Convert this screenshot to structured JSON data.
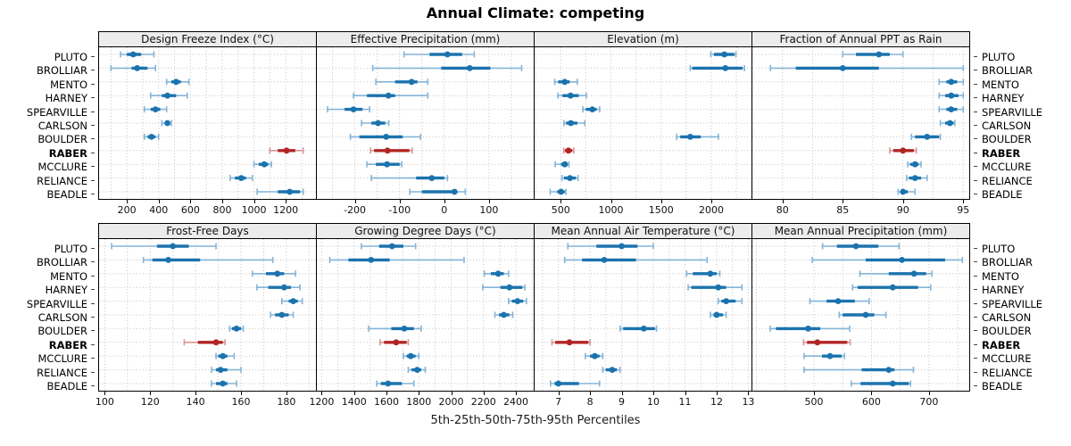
{
  "title": "Annual Climate: competing",
  "caption": "5th-25th-50th-75th-95th Percentiles",
  "colors": {
    "series": "#1b73ae",
    "series_light": "#85b4d7",
    "highlight": "#b22424",
    "highlight_light": "#d79494",
    "grid": "#c3c3c3",
    "strip_bg": "#ececec",
    "panel_border": "#000000"
  },
  "chart_data": {
    "type": "dotplot-percentiles",
    "layout": {
      "rows": 2,
      "cols": 4
    },
    "percentile_labels": [
      "5th",
      "25th",
      "50th",
      "75th",
      "95th"
    ],
    "sites": [
      "PLUTO",
      "BROLLIAR",
      "MENTO",
      "HARNEY",
      "SPEARVILLE",
      "CARLSON",
      "BOULDER",
      "RABER",
      "MCCLURE",
      "RELIANCE",
      "BEADLE"
    ],
    "highlight_site": "RABER",
    "panels": [
      {
        "title": "Design Freeze Index (°C)",
        "domain": [
          25,
          1390
        ],
        "ticks": [
          200,
          400,
          600,
          800,
          1000,
          1200
        ],
        "grid_step": 100,
        "values": {
          "PLUTO": [
            160,
            200,
            240,
            290,
            370
          ],
          "BROLLIAR": [
            100,
            230,
            265,
            330,
            380
          ],
          "MENTO": [
            450,
            480,
            510,
            540,
            590
          ],
          "HARNEY": [
            350,
            420,
            455,
            510,
            580
          ],
          "SPEARVILLE": [
            310,
            350,
            380,
            410,
            450
          ],
          "CARLSON": [
            420,
            445,
            455,
            470,
            480
          ],
          "BOULDER": [
            310,
            330,
            355,
            380,
            400
          ],
          "RABER": [
            1100,
            1150,
            1205,
            1260,
            1310
          ],
          "MCCLURE": [
            1000,
            1030,
            1065,
            1090,
            1110
          ],
          "RELIANCE": [
            850,
            880,
            920,
            950,
            990
          ],
          "BEADLE": [
            1020,
            1150,
            1225,
            1290,
            1310
          ]
        }
      },
      {
        "title": "Effective Precipitation (mm)",
        "domain": [
          -285,
          200
        ],
        "ticks": [
          -200,
          -100,
          0,
          100
        ],
        "grid_step": 50,
        "values": {
          "PLUTO": [
            -90,
            -33,
            7,
            40,
            67
          ],
          "BROLLIAR": [
            -160,
            -7,
            57,
            103,
            173
          ],
          "MENTO": [
            -153,
            -110,
            -73,
            -60,
            -37
          ],
          "HARNEY": [
            -203,
            -173,
            -125,
            -110,
            -37
          ],
          "SPEARVILLE": [
            -261,
            -223,
            -203,
            -183,
            -167
          ],
          "CARLSON": [
            -185,
            -163,
            -148,
            -132,
            -124
          ],
          "BOULDER": [
            -210,
            -190,
            -130,
            -93,
            -53
          ],
          "RABER": [
            -165,
            -157,
            -127,
            -78,
            -72
          ],
          "MCCLURE": [
            -173,
            -153,
            -128,
            -100,
            -95
          ],
          "RELIANCE": [
            -163,
            -63,
            -28,
            0,
            7
          ],
          "BEADLE": [
            -77,
            -50,
            23,
            27,
            47
          ]
        }
      },
      {
        "title": "Elevation (m)",
        "domain": [
          240,
          2400
        ],
        "ticks": [
          500,
          1000,
          1500,
          2000
        ],
        "grid_step": 250,
        "values": {
          "PLUTO": [
            1995,
            2025,
            2130,
            2230,
            2245
          ],
          "BROLLIAR": [
            1790,
            1810,
            2140,
            2310,
            2330
          ],
          "MENTO": [
            440,
            475,
            540,
            590,
            665
          ],
          "HARNEY": [
            473,
            518,
            598,
            680,
            755
          ],
          "SPEARVILLE": [
            720,
            750,
            815,
            858,
            888
          ],
          "CARLSON": [
            533,
            553,
            601,
            666,
            740
          ],
          "BOULDER": [
            1655,
            1690,
            1790,
            1895,
            2070
          ],
          "RABER": [
            530,
            542,
            577,
            615,
            630
          ],
          "MCCLURE": [
            445,
            503,
            541,
            571,
            583
          ],
          "RELIANCE": [
            512,
            533,
            592,
            651,
            672
          ],
          "BEADLE": [
            395,
            465,
            503,
            541,
            553
          ]
        }
      },
      {
        "title": "Fraction of Annual PPT as Rain",
        "domain": [
          77.5,
          95.5
        ],
        "ticks": [
          80,
          85,
          90,
          95
        ],
        "grid_step": 2.5,
        "values": {
          "PLUTO": [
            85,
            86.1,
            88,
            88.9,
            90
          ],
          "BROLLIAR": [
            79,
            81.1,
            85,
            88,
            95
          ],
          "MENTO": [
            93,
            93.6,
            94,
            94.5,
            95
          ],
          "HARNEY": [
            93,
            93.5,
            94,
            94.6,
            95
          ],
          "SPEARVILLE": [
            93,
            93.6,
            94,
            94.5,
            95
          ],
          "CARLSON": [
            93.1,
            93.5,
            93.9,
            94.2,
            94.3
          ],
          "BOULDER": [
            90.7,
            91,
            92,
            93,
            93.1
          ],
          "RABER": [
            88.9,
            89.2,
            90,
            90.9,
            91.1
          ],
          "MCCLURE": [
            90.4,
            90.6,
            91,
            91.3,
            91.5
          ],
          "RELIANCE": [
            90.3,
            90.5,
            91,
            91.5,
            92
          ],
          "BEADLE": [
            89.6,
            89.8,
            90,
            90.4,
            91
          ]
        }
      },
      {
        "title": "Frost-Free Days",
        "domain": [
          97.5,
          193
        ],
        "ticks": [
          100,
          120,
          140,
          160,
          180
        ],
        "grid_step": 10,
        "values": {
          "PLUTO": [
            103,
            123,
            130,
            137,
            149
          ],
          "BROLLIAR": [
            117,
            121,
            128,
            142,
            174
          ],
          "MENTO": [
            165,
            171,
            176,
            179,
            184
          ],
          "HARNEY": [
            167,
            172,
            179,
            182,
            186
          ],
          "SPEARVILLE": [
            178,
            181,
            183,
            185,
            187
          ],
          "CARLSON": [
            173,
            175,
            178,
            181,
            183
          ],
          "BOULDER": [
            155,
            156,
            158,
            160,
            161
          ],
          "RABER": [
            135,
            141,
            149,
            152,
            153
          ],
          "MCCLURE": [
            149,
            150,
            152,
            154,
            157
          ],
          "RELIANCE": [
            147,
            149,
            151,
            154,
            160
          ],
          "BEADLE": [
            147,
            149,
            152,
            154,
            158
          ]
        }
      },
      {
        "title": "Growing Degree Days (°C)",
        "domain": [
          1170,
          2510
        ],
        "ticks": [
          1200,
          1400,
          1600,
          1800,
          2000,
          2200,
          2400
        ],
        "grid_step": 100,
        "values": {
          "PLUTO": [
            1445,
            1555,
            1635,
            1705,
            1780
          ],
          "BROLLIAR": [
            1250,
            1365,
            1505,
            1620,
            2080
          ],
          "MENTO": [
            2205,
            2245,
            2290,
            2325,
            2355
          ],
          "HARNEY": [
            2195,
            2305,
            2360,
            2440,
            2455
          ],
          "SPEARVILLE": [
            2355,
            2375,
            2410,
            2445,
            2465
          ],
          "CARLSON": [
            2270,
            2295,
            2325,
            2360,
            2380
          ],
          "BOULDER": [
            1490,
            1630,
            1710,
            1770,
            1815
          ],
          "RABER": [
            1560,
            1585,
            1660,
            1725,
            1735
          ],
          "MCCLURE": [
            1705,
            1725,
            1750,
            1780,
            1800
          ],
          "RELIANCE": [
            1735,
            1755,
            1790,
            1815,
            1840
          ],
          "BEADLE": [
            1540,
            1565,
            1610,
            1695,
            1770
          ]
        }
      },
      {
        "title": "Mean Annual Air Temperature (°C)",
        "domain": [
          6.25,
          13.1
        ],
        "ticks": [
          7,
          8,
          9,
          10,
          11,
          12,
          13
        ],
        "grid_step": 0.5,
        "values": {
          "PLUTO": [
            7.3,
            8.2,
            9.0,
            9.5,
            10.0
          ],
          "BROLLIAR": [
            7.2,
            7.75,
            8.45,
            9.45,
            11.7
          ],
          "MENTO": [
            11.05,
            11.25,
            11.8,
            12.0,
            12.1
          ],
          "HARNEY": [
            11.1,
            11.2,
            12.05,
            12.3,
            12.8
          ],
          "SPEARVILLE": [
            12.05,
            12.15,
            12.3,
            12.6,
            12.8
          ],
          "CARLSON": [
            11.8,
            11.9,
            12.0,
            12.2,
            12.3
          ],
          "BOULDER": [
            8.95,
            9.05,
            9.7,
            10.05,
            10.1
          ],
          "RABER": [
            6.8,
            6.9,
            7.35,
            7.95,
            8.0
          ],
          "MCCLURE": [
            7.85,
            8.0,
            8.15,
            8.3,
            8.4
          ],
          "RELIANCE": [
            8.4,
            8.5,
            8.7,
            8.85,
            8.95
          ],
          "BEADLE": [
            6.75,
            6.88,
            7.0,
            7.65,
            8.3
          ]
        }
      },
      {
        "title": "Mean Annual Precipitation (mm)",
        "domain": [
          393,
          770
        ],
        "ticks": [
          500,
          600,
          700
        ],
        "grid_step": 50,
        "values": {
          "PLUTO": [
            515,
            540,
            573,
            612,
            648
          ],
          "BROLLIAR": [
            497,
            590,
            653,
            728,
            758
          ],
          "MENTO": [
            580,
            630,
            674,
            695,
            705
          ],
          "HARNEY": [
            567,
            576,
            637,
            681,
            703
          ],
          "SPEARVILLE": [
            493,
            522,
            542,
            571,
            596
          ],
          "CARLSON": [
            544,
            550,
            590,
            605,
            625
          ],
          "BOULDER": [
            424,
            434,
            490,
            511,
            562
          ],
          "RABER": [
            482,
            488,
            506,
            558,
            563
          ],
          "MCCLURE": [
            483,
            514,
            528,
            548,
            553
          ],
          "RELIANCE": [
            483,
            583,
            630,
            640,
            673
          ],
          "BEADLE": [
            565,
            581,
            637,
            665,
            668
          ]
        }
      }
    ]
  }
}
